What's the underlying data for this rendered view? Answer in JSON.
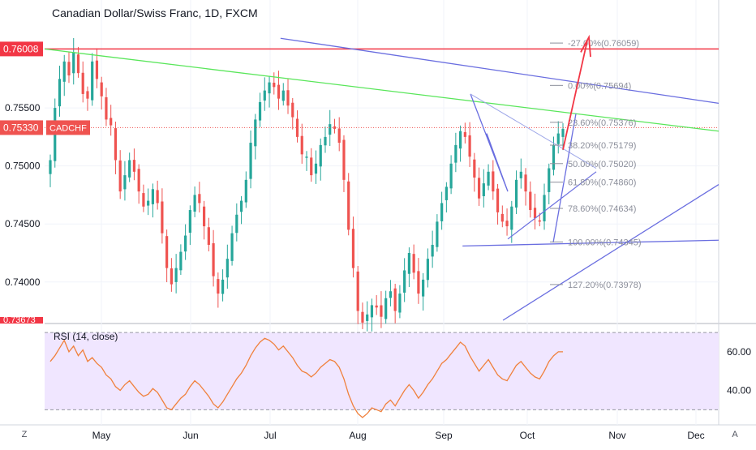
{
  "title": "Canadian Dollar/Swiss Franc, 1D, FXCM",
  "corner_left": "Z",
  "corner_right": "A",
  "colors": {
    "up": "#26a69a",
    "down": "#ef5350",
    "resistance": "#f23645",
    "trendline_green": "#59e65a",
    "channel": "#6a6ee0",
    "fib": "#8c8f9b",
    "arrow": "#f23645",
    "rsi_line": "#f0803c",
    "rsi_band": "#f0e6ff"
  },
  "chart_data": [
    {
      "type": "candlestick",
      "title": "Canadian Dollar/Swiss Franc, 1D, FXCM",
      "ylim": [
        0.7367,
        0.7643
      ],
      "y_ticks": [
        "0.75500",
        "0.75000",
        "0.74500",
        "0.74000"
      ],
      "y_tick_values": [
        0.755,
        0.75,
        0.745,
        0.74
      ],
      "x_ticks": [
        "May",
        "Jun",
        "Jul",
        "Aug",
        "Sep",
        "Oct",
        "Nov",
        "Dec"
      ],
      "price_badges": [
        {
          "value": 0.76008,
          "label": "0.76008",
          "tag": ""
        },
        {
          "value": 0.7533,
          "label": "0.75330",
          "tag": "CADCHF"
        }
      ],
      "clipped_label": "0.73673",
      "horizontal_lines": [
        0.76008
      ],
      "fib_levels": [
        {
          "label": "-27.00%(0.76059)",
          "value": 0.76059
        },
        {
          "label": "0.00%(0.75694)",
          "value": 0.75694
        },
        {
          "label": "23.60%(0.75376)",
          "value": 0.75376
        },
        {
          "label": "38.20%(0.75179)",
          "value": 0.75179
        },
        {
          "label": "50.00%(0.75020)",
          "value": 0.7502
        },
        {
          "label": "61.80%(0.74860)",
          "value": 0.7486
        },
        {
          "label": "78.60%(0.74634)",
          "value": 0.74634
        },
        {
          "label": "100.00%(0.74345)",
          "value": 0.74345
        },
        {
          "label": "127.20%(0.73978)",
          "value": 0.73978
        }
      ],
      "price_path": [
        0.7505,
        0.755,
        0.7575,
        0.759,
        0.7578,
        0.7598,
        0.758,
        0.7562,
        0.7558,
        0.759,
        0.7575,
        0.756,
        0.754,
        0.7535,
        0.7505,
        0.7478,
        0.7492,
        0.7505,
        0.7495,
        0.7478,
        0.7465,
        0.747,
        0.748,
        0.7468,
        0.7442,
        0.7412,
        0.7398,
        0.7412,
        0.7426,
        0.744,
        0.7462,
        0.7475,
        0.7468,
        0.7448,
        0.7432,
        0.7405,
        0.739,
        0.7402,
        0.742,
        0.7442,
        0.7458,
        0.747,
        0.7488,
        0.752,
        0.754,
        0.7555,
        0.7565,
        0.7572,
        0.7568,
        0.7558,
        0.7565,
        0.7552,
        0.7542,
        0.7525,
        0.751,
        0.7508,
        0.7492,
        0.7502,
        0.7518,
        0.7525,
        0.7536,
        0.7532,
        0.752,
        0.7488,
        0.7445,
        0.7412,
        0.7375,
        0.7365,
        0.7372,
        0.738,
        0.7378,
        0.737,
        0.7386,
        0.7392,
        0.7375,
        0.739,
        0.741,
        0.7425,
        0.7408,
        0.739,
        0.7402,
        0.742,
        0.7432,
        0.7452,
        0.7468,
        0.7482,
        0.7502,
        0.7518,
        0.753,
        0.7525,
        0.7508,
        0.749,
        0.7472,
        0.7485,
        0.7495,
        0.7478,
        0.746,
        0.7452,
        0.7448,
        0.7465,
        0.7488,
        0.7495,
        0.7478,
        0.7462,
        0.7455,
        0.7452,
        0.7475,
        0.7498,
        0.7518,
        0.7528,
        0.7532
      ],
      "annotation_lines": [
        {
          "name": "green-trendline",
          "from": [
            0,
            0.76008
          ],
          "to": [
            1,
            0.753
          ]
        },
        {
          "name": "upper-channel-line",
          "from": [
            0.35,
            0.761
          ],
          "to": [
            1,
            0.7554
          ]
        },
        {
          "name": "lower-horizontal-line",
          "from": [
            0.62,
            0.7431
          ],
          "to": [
            1,
            0.7436
          ]
        },
        {
          "name": "rising-line",
          "from": [
            0.68,
            0.7367
          ],
          "to": [
            1,
            0.7484
          ]
        }
      ]
    },
    {
      "type": "line",
      "title": "RSI (14, close)",
      "ylim": [
        23,
        73
      ],
      "y_ticks": [
        "60.00",
        "40.00"
      ],
      "y_tick_values": [
        60,
        40
      ],
      "band": [
        30,
        70
      ],
      "values": [
        55,
        58,
        62,
        66,
        60,
        63,
        58,
        61,
        55,
        57,
        54,
        52,
        48,
        46,
        42,
        40,
        43,
        45,
        42,
        39,
        37,
        38,
        41,
        39,
        35,
        31,
        30,
        33,
        36,
        38,
        42,
        45,
        43,
        40,
        37,
        33,
        31,
        34,
        38,
        42,
        46,
        49,
        53,
        58,
        62,
        65,
        67,
        66,
        64,
        61,
        63,
        60,
        57,
        53,
        50,
        49,
        47,
        49,
        52,
        54,
        56,
        55,
        52,
        46,
        38,
        32,
        28,
        26,
        28,
        31,
        30,
        29,
        33,
        35,
        32,
        36,
        40,
        43,
        40,
        36,
        39,
        43,
        46,
        50,
        54,
        56,
        59,
        62,
        65,
        63,
        58,
        54,
        50,
        53,
        56,
        52,
        48,
        46,
        45,
        49,
        53,
        55,
        52,
        49,
        47,
        46,
        50,
        55,
        58,
        60,
        60
      ]
    }
  ]
}
